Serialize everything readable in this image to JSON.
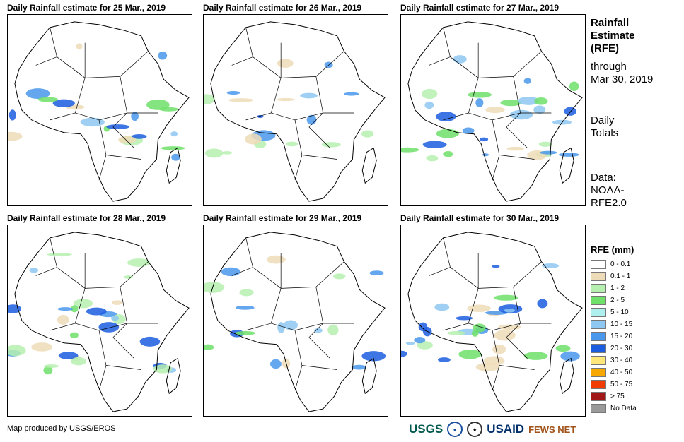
{
  "panels": [
    {
      "title": "Daily Rainfall estimate for 25 Mar., 2019",
      "intensity": 0.5
    },
    {
      "title": "Daily Rainfall estimate for 26 Mar., 2019",
      "intensity": 0.45
    },
    {
      "title": "Daily Rainfall estimate for 27 Mar., 2019",
      "intensity": 0.75
    },
    {
      "title": "Daily Rainfall estimate for 28 Mar., 2019",
      "intensity": 0.7
    },
    {
      "title": "Daily Rainfall estimate for 29 Mar., 2019",
      "intensity": 0.45
    },
    {
      "title": "Daily Rainfall estimate for 30 Mar., 2019",
      "intensity": 0.8
    }
  ],
  "sidebar": {
    "title_line1": "Rainfall",
    "title_line2": "Estimate",
    "title_line3": "(RFE)",
    "through_line1": "through",
    "through_line2": "Mar 30, 2019",
    "totals_line1": "Daily",
    "totals_line2": "Totals",
    "data_line1": "Data:",
    "data_line2": "NOAA-",
    "data_line3": "RFE2.0"
  },
  "legend": {
    "title": "RFE (mm)",
    "items": [
      {
        "label": "0 - 0.1",
        "color": "#ffffff"
      },
      {
        "label": "0.1 - 1",
        "color": "#eedcb8"
      },
      {
        "label": "1 - 2",
        "color": "#b6f0b0"
      },
      {
        "label": "2 - 5",
        "color": "#6fe06a"
      },
      {
        "label": "5 - 10",
        "color": "#aef0ee"
      },
      {
        "label": "10 - 15",
        "color": "#8ec8f2"
      },
      {
        "label": "15 - 20",
        "color": "#4a98ec"
      },
      {
        "label": "20 - 30",
        "color": "#1c5de0"
      },
      {
        "label": "30 - 40",
        "color": "#fde67a"
      },
      {
        "label": "40 - 50",
        "color": "#f6a800"
      },
      {
        "label": "50 - 75",
        "color": "#f03c00"
      },
      {
        "label": "> 75",
        "color": "#a01818"
      },
      {
        "label": "No Data",
        "color": "#9a9a9a"
      }
    ]
  },
  "credit": "Map produced by USGS/EROS",
  "logos": {
    "usgs": "USGS",
    "usaid": "USAID",
    "fews": "FEWS NET"
  }
}
